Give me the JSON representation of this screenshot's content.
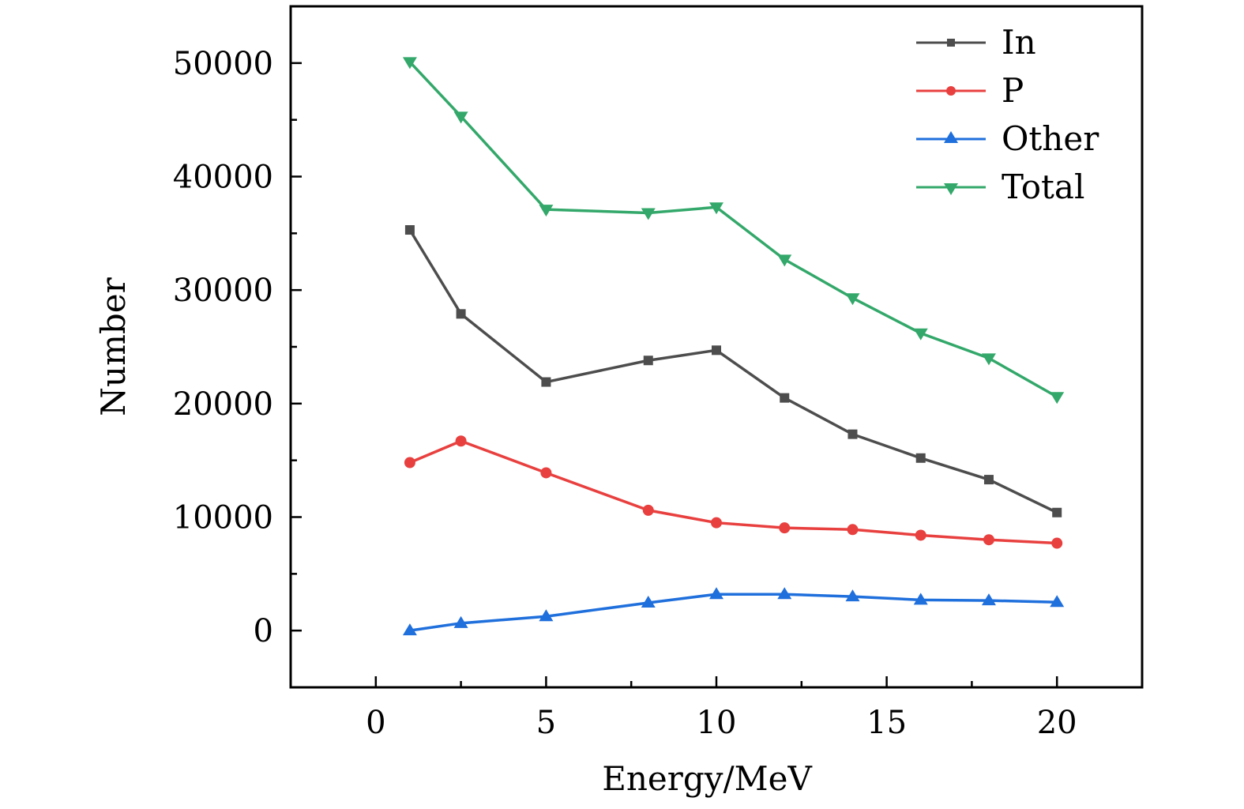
{
  "chart_data": {
    "type": "line",
    "title": "",
    "xlabel": "Energy/MeV",
    "ylabel": "Number",
    "xlim": [
      -2.5,
      22.5
    ],
    "ylim": [
      -5000,
      55000
    ],
    "xticks": [
      0,
      5,
      10,
      15,
      20
    ],
    "xtick_labels": [
      "0",
      "5",
      "10",
      "15",
      "20"
    ],
    "yticks": [
      0,
      10000,
      20000,
      30000,
      40000,
      50000
    ],
    "ytick_labels": [
      "0",
      "10000",
      "20000",
      "30000",
      "40000",
      "50000"
    ],
    "x_minor_step": 2.5,
    "y_minor_step": 5000,
    "grid": false,
    "legend_position": "top-right",
    "x": [
      1,
      2.5,
      5,
      8,
      10,
      12,
      14,
      16,
      18,
      20
    ],
    "series": [
      {
        "name": "In",
        "color": "#4d4d4d",
        "marker": "square",
        "values": [
          35300,
          27900,
          21900,
          23800,
          24700,
          20500,
          17300,
          15200,
          13300,
          10400
        ]
      },
      {
        "name": "P",
        "color": "#e8403f",
        "marker": "circle",
        "values": [
          14800,
          16700,
          13900,
          10600,
          9500,
          9050,
          8900,
          8400,
          8000,
          7700
        ]
      },
      {
        "name": "Other",
        "color": "#1f6fdc",
        "marker": "triangle-up",
        "values": [
          0,
          650,
          1250,
          2450,
          3200,
          3200,
          3000,
          2700,
          2650,
          2500
        ]
      },
      {
        "name": "Total",
        "color": "#33a86a",
        "marker": "triangle-down",
        "values": [
          50100,
          45300,
          37100,
          36800,
          37300,
          32700,
          29300,
          26200,
          24000,
          20600
        ]
      }
    ]
  }
}
